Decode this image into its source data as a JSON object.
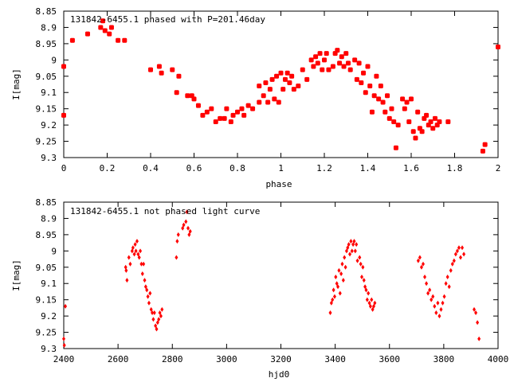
{
  "chart_data": [
    {
      "type": "scatter",
      "title": "131842-6455.1 phased with P=201.46day",
      "xlabel": "phase",
      "ylabel": "I[mag]",
      "xlim": [
        0,
        2
      ],
      "ylim": [
        9.3,
        8.85
      ],
      "y_inverted": true,
      "xticks": [
        0,
        0.2,
        0.4,
        0.6,
        0.8,
        1,
        1.2,
        1.4,
        1.6,
        1.8,
        2
      ],
      "xtick_labels": [
        "0",
        "0.2",
        "0.4",
        "0.6",
        "0.8",
        "1",
        "1.2",
        "1.4",
        "1.6",
        "1.8",
        "2"
      ],
      "yticks": [
        8.85,
        8.9,
        8.95,
        9,
        9.05,
        9.1,
        9.15,
        9.2,
        9.25,
        9.3
      ],
      "ytick_labels": [
        "8.85",
        "8.9",
        "8.95",
        "9",
        "9.05",
        "9.1",
        "9.15",
        "9.2",
        "9.25",
        "9.3"
      ],
      "grid": false,
      "marker_color": "#ff0000",
      "series": [
        {
          "x": [
            0.0,
            0.0,
            0.04,
            0.11,
            0.17,
            0.18,
            0.19,
            0.21,
            0.22,
            0.25,
            0.28,
            0.4,
            0.44,
            0.45,
            0.5,
            0.52,
            0.53,
            0.57,
            0.59,
            0.6,
            0.62,
            0.64,
            0.66,
            0.68,
            0.7,
            0.72,
            0.74,
            0.75,
            0.77,
            0.78,
            0.8,
            0.82,
            0.83,
            0.85,
            0.87,
            0.9,
            0.9,
            0.92,
            0.93,
            0.94,
            0.95,
            0.96,
            0.97,
            0.98,
            0.99,
            1.0,
            1.01,
            1.02,
            1.03,
            1.04,
            1.05,
            1.06,
            1.08,
            1.1,
            1.12,
            1.14,
            1.15,
            1.16,
            1.17,
            1.18,
            1.19,
            1.2,
            1.21,
            1.22,
            1.24,
            1.25,
            1.26,
            1.27,
            1.28,
            1.29,
            1.3,
            1.31,
            1.32,
            1.34,
            1.35,
            1.36,
            1.37,
            1.38,
            1.39,
            1.4,
            1.41,
            1.42,
            1.43,
            1.44,
            1.45,
            1.46,
            1.47,
            1.48,
            1.49,
            1.5,
            1.51,
            1.52,
            1.53,
            1.54,
            1.56,
            1.57,
            1.58,
            1.59,
            1.6,
            1.61,
            1.62,
            1.63,
            1.64,
            1.65,
            1.66,
            1.67,
            1.68,
            1.69,
            1.7,
            1.71,
            1.72,
            1.73,
            1.77,
            1.93,
            1.94,
            2.0
          ],
          "y": [
            9.02,
            9.17,
            8.94,
            8.92,
            8.9,
            8.88,
            8.91,
            8.92,
            8.9,
            8.94,
            8.94,
            9.03,
            9.02,
            9.04,
            9.03,
            9.1,
            9.05,
            9.11,
            9.11,
            9.12,
            9.14,
            9.17,
            9.16,
            9.15,
            9.19,
            9.18,
            9.18,
            9.15,
            9.19,
            9.17,
            9.16,
            9.15,
            9.17,
            9.14,
            9.15,
            9.13,
            9.08,
            9.11,
            9.07,
            9.13,
            9.09,
            9.06,
            9.12,
            9.05,
            9.13,
            9.04,
            9.09,
            9.06,
            9.04,
            9.07,
            9.05,
            9.09,
            9.08,
            9.03,
            9.06,
            9.0,
            9.02,
            8.99,
            9.01,
            8.98,
            9.03,
            9.0,
            8.98,
            9.03,
            9.02,
            8.98,
            8.97,
            9.01,
            8.99,
            9.02,
            8.98,
            9.01,
            9.03,
            9.0,
            9.06,
            9.01,
            9.07,
            9.04,
            9.1,
            9.02,
            9.08,
            9.16,
            9.11,
            9.05,
            9.12,
            9.08,
            9.13,
            9.16,
            9.11,
            9.18,
            9.15,
            9.19,
            9.27,
            9.2,
            9.12,
            9.15,
            9.13,
            9.19,
            9.12,
            9.22,
            9.24,
            9.16,
            9.21,
            9.22,
            9.18,
            9.17,
            9.2,
            9.19,
            9.21,
            9.18,
            9.2,
            9.19,
            9.19,
            9.28,
            9.26,
            8.96
          ]
        }
      ]
    },
    {
      "type": "scatter",
      "title": "131842-6455.1 not phased light curve",
      "xlabel": "hjd0",
      "ylabel": "I[mag]",
      "xlim": [
        2400,
        4000
      ],
      "ylim": [
        9.3,
        8.85
      ],
      "y_inverted": true,
      "xticks": [
        2400,
        2600,
        2800,
        3000,
        3200,
        3400,
        3600,
        3800,
        4000
      ],
      "xtick_labels": [
        "2400",
        "2600",
        "2800",
        "3000",
        "3200",
        "3400",
        "3600",
        "3800",
        "4000"
      ],
      "yticks": [
        8.85,
        8.9,
        8.95,
        9,
        9.05,
        9.1,
        9.15,
        9.2,
        9.25,
        9.3
      ],
      "ytick_labels": [
        "8.85",
        "8.9",
        "8.95",
        "9",
        "9.05",
        "9.1",
        "9.15",
        "9.2",
        "9.25",
        "9.3"
      ],
      "grid": false,
      "marker_color": "#ff0000",
      "series": [
        {
          "x": [
            2400,
            2402,
            2406,
            2628,
            2630,
            2633,
            2640,
            2645,
            2652,
            2655,
            2660,
            2663,
            2666,
            2670,
            2674,
            2678,
            2682,
            2686,
            2690,
            2694,
            2698,
            2702,
            2706,
            2710,
            2714,
            2718,
            2722,
            2726,
            2730,
            2734,
            2738,
            2742,
            2746,
            2750,
            2754,
            2758,
            2762,
            2815,
            2818,
            2822,
            2838,
            2842,
            2850,
            2854,
            2858,
            2862,
            2866,
            3382,
            3386,
            3390,
            3394,
            3398,
            3402,
            3406,
            3410,
            3414,
            3418,
            3422,
            3426,
            3430,
            3434,
            3438,
            3442,
            3446,
            3450,
            3454,
            3458,
            3462,
            3466,
            3470,
            3474,
            3478,
            3482,
            3490,
            3494,
            3498,
            3502,
            3506,
            3510,
            3514,
            3518,
            3522,
            3526,
            3530,
            3534,
            3538,
            3542,
            3546,
            3706,
            3712,
            3718,
            3724,
            3730,
            3736,
            3742,
            3748,
            3754,
            3760,
            3766,
            3772,
            3778,
            3784,
            3790,
            3796,
            3802,
            3808,
            3814,
            3820,
            3826,
            3832,
            3838,
            3844,
            3850,
            3856,
            3862,
            3868,
            3874,
            3912,
            3918,
            3924,
            3930
          ],
          "y": [
            9.27,
            9.29,
            9.17,
            9.05,
            9.06,
            9.09,
            9.02,
            9.04,
            9.0,
            8.99,
            9.01,
            8.98,
            9.0,
            8.97,
            9.01,
            9.02,
            9.0,
            9.04,
            9.07,
            9.04,
            9.09,
            9.11,
            9.12,
            9.14,
            9.16,
            9.13,
            9.18,
            9.19,
            9.21,
            9.19,
            9.23,
            9.24,
            9.22,
            9.21,
            9.19,
            9.2,
            9.18,
            9.02,
            8.97,
            8.95,
            8.93,
            8.92,
            8.91,
            8.88,
            8.93,
            8.95,
            8.94,
            9.19,
            9.16,
            9.15,
            9.12,
            9.14,
            9.08,
            9.1,
            9.11,
            9.06,
            9.13,
            9.07,
            9.04,
            9.09,
            9.02,
            9.05,
            9.0,
            8.99,
            8.98,
            9.01,
            8.97,
            9.0,
            8.98,
            8.97,
            9.0,
            8.98,
            9.03,
            9.02,
            9.04,
            9.08,
            9.05,
            9.09,
            9.11,
            9.12,
            9.15,
            9.13,
            9.16,
            9.17,
            9.15,
            9.18,
            9.17,
            9.16,
            9.03,
            9.02,
            9.05,
            9.04,
            9.08,
            9.1,
            9.13,
            9.12,
            9.15,
            9.14,
            9.17,
            9.19,
            9.16,
            9.2,
            9.18,
            9.16,
            9.14,
            9.1,
            9.08,
            9.11,
            9.06,
            9.04,
            9.03,
            9.01,
            9.0,
            8.99,
            9.02,
            8.99,
            9.01,
            9.18,
            9.19,
            9.22,
            9.27
          ]
        }
      ]
    }
  ]
}
